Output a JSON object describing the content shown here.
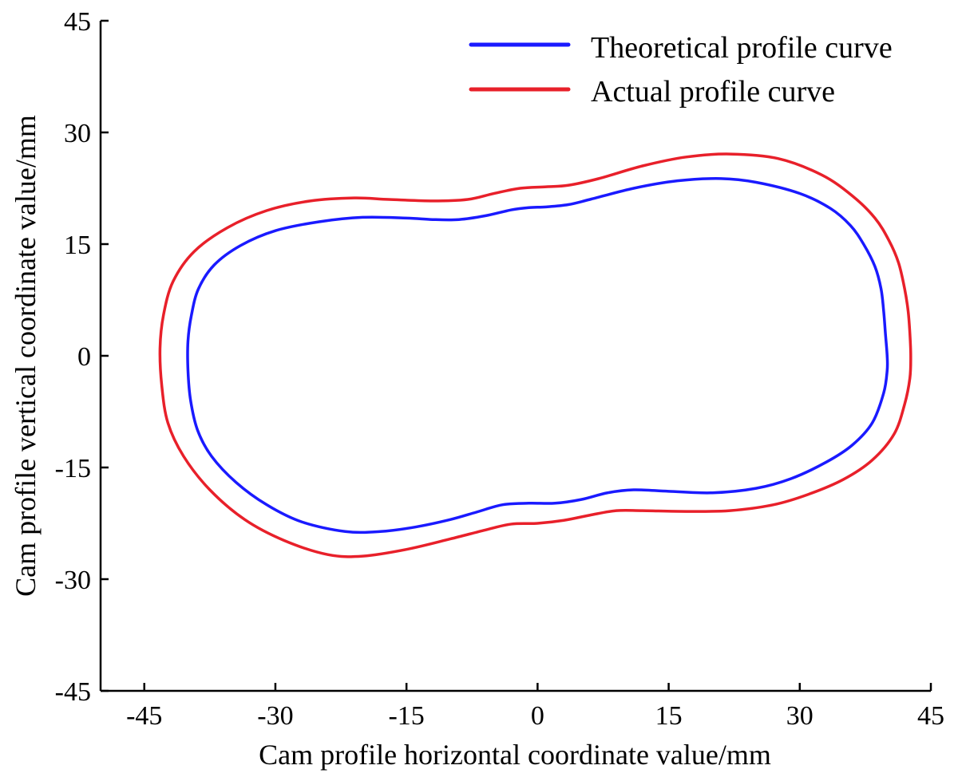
{
  "chart_data": {
    "type": "line",
    "xlabel": "Cam profile horizontal coordinate value/mm",
    "ylabel": "Cam profile vertical coordinate value/mm",
    "xlim": [
      -50,
      45
    ],
    "ylim": [
      -45,
      45
    ],
    "xticks": [
      -45,
      -30,
      -15,
      0,
      15,
      30,
      45
    ],
    "yticks": [
      -45,
      -30,
      -15,
      0,
      15,
      30,
      45
    ],
    "xtick_labels": [
      "-45",
      "-30",
      "-15",
      "0",
      "15",
      "30",
      "45"
    ],
    "ytick_labels": [
      "-45",
      "-30",
      "-15",
      "0",
      "15",
      "30",
      "45"
    ],
    "legend_position": "top-right",
    "grid": false,
    "series": [
      {
        "name": "Theoretical profile curve",
        "color": "#1a1aff",
        "points": [
          [
            40.0,
            0.0
          ],
          [
            39.8,
            3.0
          ],
          [
            39.6,
            6.0
          ],
          [
            39.3,
            9.0
          ],
          [
            38.6,
            12.0
          ],
          [
            37.3,
            15.0
          ],
          [
            35.8,
            17.5
          ],
          [
            33.5,
            19.8
          ],
          [
            30.0,
            21.8
          ],
          [
            25.0,
            23.3
          ],
          [
            21.0,
            23.8
          ],
          [
            16.0,
            23.5
          ],
          [
            11.0,
            22.5
          ],
          [
            6.0,
            21.0
          ],
          [
            3.5,
            20.3
          ],
          [
            1.0,
            20.0
          ],
          [
            -1.0,
            19.9
          ],
          [
            -3.0,
            19.6
          ],
          [
            -6.0,
            18.8
          ],
          [
            -9.0,
            18.3
          ],
          [
            -12.0,
            18.3
          ],
          [
            -15.0,
            18.5
          ],
          [
            -20.0,
            18.6
          ],
          [
            -25.0,
            18.0
          ],
          [
            -30.0,
            16.8
          ],
          [
            -34.0,
            14.8
          ],
          [
            -37.0,
            12.2
          ],
          [
            -38.8,
            9.0
          ],
          [
            -39.6,
            5.5
          ],
          [
            -40.0,
            2.0
          ],
          [
            -40.0,
            -2.0
          ],
          [
            -39.7,
            -6.0
          ],
          [
            -38.9,
            -10.0
          ],
          [
            -37.3,
            -13.5
          ],
          [
            -34.5,
            -17.0
          ],
          [
            -31.0,
            -20.0
          ],
          [
            -27.0,
            -22.3
          ],
          [
            -22.0,
            -23.6
          ],
          [
            -18.0,
            -23.6
          ],
          [
            -14.0,
            -23.0
          ],
          [
            -10.0,
            -22.0
          ],
          [
            -7.0,
            -21.0
          ],
          [
            -4.0,
            -20.0
          ],
          [
            -1.0,
            -19.8
          ],
          [
            2.0,
            -19.8
          ],
          [
            5.0,
            -19.3
          ],
          [
            8.0,
            -18.4
          ],
          [
            11.0,
            -18.0
          ],
          [
            15.0,
            -18.2
          ],
          [
            20.0,
            -18.4
          ],
          [
            25.0,
            -17.8
          ],
          [
            29.0,
            -16.5
          ],
          [
            33.0,
            -14.3
          ],
          [
            36.0,
            -12.0
          ],
          [
            38.3,
            -9.0
          ],
          [
            39.6,
            -5.0
          ],
          [
            40.0,
            -2.0
          ],
          [
            40.0,
            0.0
          ]
        ]
      },
      {
        "name": "Actual profile curve",
        "color": "#e8202a",
        "points": [
          [
            42.7,
            0.0
          ],
          [
            42.6,
            3.0
          ],
          [
            42.4,
            6.0
          ],
          [
            42.0,
            9.0
          ],
          [
            41.3,
            12.5
          ],
          [
            40.2,
            15.5
          ],
          [
            38.6,
            18.5
          ],
          [
            36.0,
            21.5
          ],
          [
            32.5,
            24.3
          ],
          [
            27.5,
            26.5
          ],
          [
            22.0,
            27.1
          ],
          [
            17.0,
            26.7
          ],
          [
            12.0,
            25.5
          ],
          [
            7.0,
            23.8
          ],
          [
            3.5,
            22.9
          ],
          [
            1.0,
            22.7
          ],
          [
            -2.0,
            22.5
          ],
          [
            -5.0,
            21.8
          ],
          [
            -8.0,
            21.0
          ],
          [
            -12.0,
            20.8
          ],
          [
            -17.0,
            21.0
          ],
          [
            -21.0,
            21.2
          ],
          [
            -26.0,
            20.8
          ],
          [
            -31.0,
            19.5
          ],
          [
            -35.5,
            17.2
          ],
          [
            -39.3,
            14.0
          ],
          [
            -41.7,
            10.0
          ],
          [
            -42.8,
            5.5
          ],
          [
            -43.2,
            1.0
          ],
          [
            -43.0,
            -4.0
          ],
          [
            -42.3,
            -9.0
          ],
          [
            -40.5,
            -13.5
          ],
          [
            -37.5,
            -18.0
          ],
          [
            -33.5,
            -22.0
          ],
          [
            -29.0,
            -24.8
          ],
          [
            -24.0,
            -26.7
          ],
          [
            -20.0,
            -26.9
          ],
          [
            -15.0,
            -26.0
          ],
          [
            -10.0,
            -24.6
          ],
          [
            -6.0,
            -23.4
          ],
          [
            -3.0,
            -22.6
          ],
          [
            0.0,
            -22.5
          ],
          [
            3.0,
            -22.1
          ],
          [
            6.0,
            -21.4
          ],
          [
            9.0,
            -20.8
          ],
          [
            12.0,
            -20.8
          ],
          [
            17.0,
            -20.9
          ],
          [
            22.0,
            -20.8
          ],
          [
            27.0,
            -20.0
          ],
          [
            31.0,
            -18.6
          ],
          [
            35.0,
            -16.6
          ],
          [
            38.3,
            -14.0
          ],
          [
            40.8,
            -10.5
          ],
          [
            42.0,
            -6.5
          ],
          [
            42.6,
            -3.0
          ],
          [
            42.7,
            0.0
          ]
        ]
      }
    ]
  }
}
